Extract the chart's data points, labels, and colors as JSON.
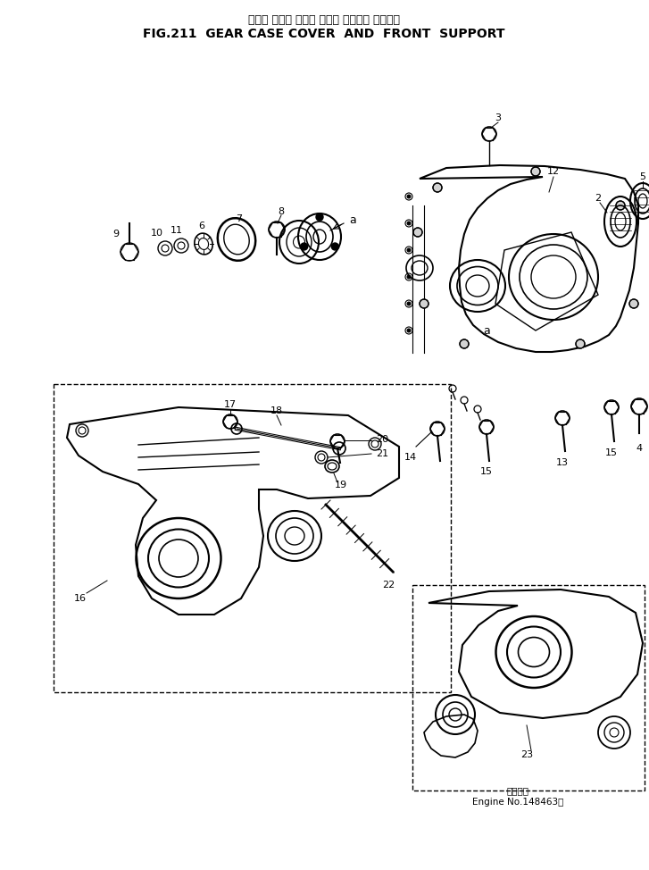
{
  "title_japanese": "ギヤー ケース カバー および フロント サポート",
  "title_english": "FIG.211  GEAR CASE COVER  AND  FRONT  SUPPORT",
  "engine_note_japanese": "適用号等",
  "engine_note": "Engine No.148463～",
  "bg_color": "#ffffff",
  "text_color": "#000000",
  "fig_width": 7.27,
  "fig_height": 9.74,
  "dpi": 100
}
